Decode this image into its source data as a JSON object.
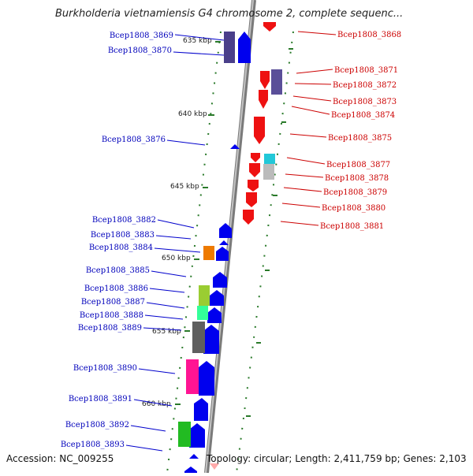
{
  "title": "Burkholderia vietnamiensis G4 chromosome 2, complete sequenc...",
  "footer": {
    "accession": "Accession: NC_009255",
    "stats": "Topology: circular; Length: 2,411,759 bp; Genes: 2,103"
  },
  "colors": {
    "forward_gene": "#0000ee",
    "reverse_gene": "#ee0000",
    "forward_label": "#0000bb",
    "reverse_label": "#cc0000",
    "backbone": "#999999",
    "tick": "#2a7a2a"
  },
  "scale_labels": [
    "635 kbp",
    "640 kbp",
    "645 kbp",
    "650 kbp",
    "655 kbp",
    "660 kbp"
  ],
  "forward_labels": [
    "Bcep1808_3869",
    "Bcep1808_3870",
    "Bcep1808_3876",
    "Bcep1808_3882",
    "Bcep1808_3883",
    "Bcep1808_3884",
    "Bcep1808_3885",
    "Bcep1808_3886",
    "Bcep1808_3887",
    "Bcep1808_3888",
    "Bcep1808_3889",
    "Bcep1808_3890",
    "Bcep1808_3891",
    "Bcep1808_3892",
    "Bcep1808_3893"
  ],
  "reverse_labels": [
    "Bcep1808_3868",
    "Bcep1808_3871",
    "Bcep1808_3872",
    "Bcep1808_3873",
    "Bcep1808_3874",
    "Bcep1808_3875",
    "Bcep1808_3877",
    "Bcep1808_3878",
    "Bcep1808_3879",
    "Bcep1808_3880",
    "Bcep1808_3881"
  ]
}
